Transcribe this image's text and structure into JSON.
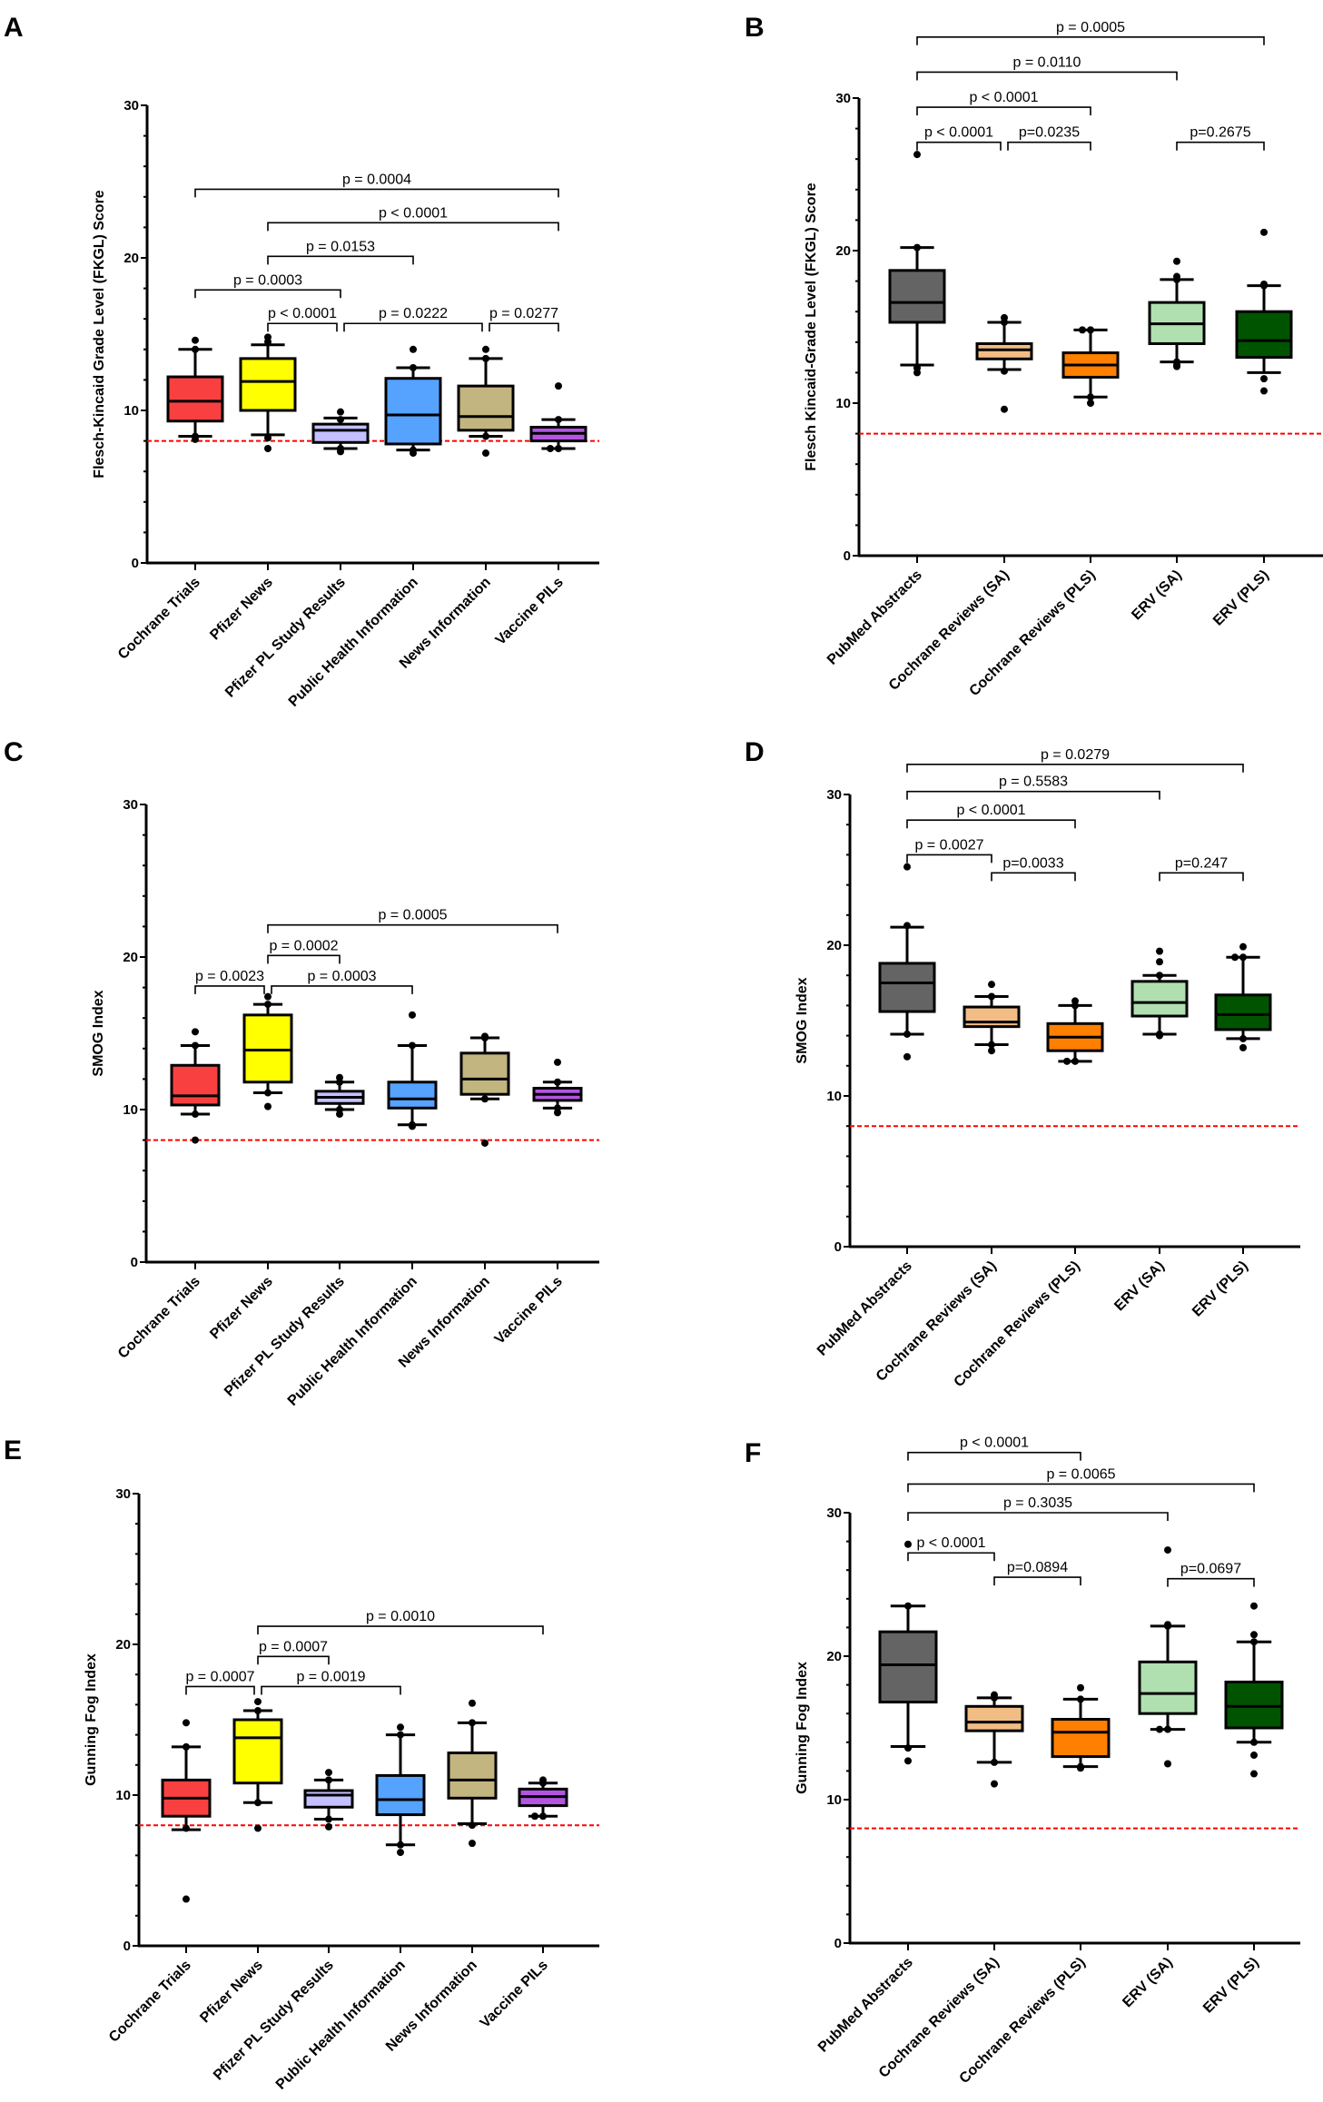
{
  "chart_data": [
    {
      "panel": "A",
      "type": "box",
      "ylabel": "Flesch-Kincaid Grade Level (FKGL) Score",
      "ylim": [
        0,
        30
      ],
      "yticks": [
        0,
        10,
        20,
        30
      ],
      "reference_line": {
        "y": 8,
        "color": "#ff0000",
        "style": "dashed"
      },
      "categories": [
        "Cochrane Trials",
        "Pfizer News",
        "Pfizer PL Study Results",
        "Public Health Information",
        "News Information",
        "Vaccine PILs"
      ],
      "colors": [
        "#f94040",
        "#ffff00",
        "#c4c0ff",
        "#56a2ff",
        "#c2b57f",
        "#b355e0"
      ],
      "boxes": [
        {
          "q1": 9.3,
          "median": 10.6,
          "q3": 12.2,
          "whisker_low": 8.3,
          "whisker_high": 14.0,
          "outliers": [
            14.6,
            8.1,
            8.3,
            14.0
          ]
        },
        {
          "q1": 10.0,
          "median": 11.9,
          "q3": 13.4,
          "whisker_low": 8.4,
          "whisker_high": 14.3,
          "outliers": [
            14.8,
            14.5,
            7.5,
            8.2
          ]
        },
        {
          "q1": 7.9,
          "median": 8.7,
          "q3": 9.1,
          "whisker_low": 7.5,
          "whisker_high": 9.5,
          "outliers": [
            9.9,
            7.3,
            7.5,
            9.4
          ]
        },
        {
          "q1": 7.8,
          "median": 9.7,
          "q3": 12.1,
          "whisker_low": 7.4,
          "whisker_high": 12.8,
          "outliers": [
            14.0,
            7.2,
            7.4,
            12.8
          ]
        },
        {
          "q1": 8.7,
          "median": 9.6,
          "q3": 11.6,
          "whisker_low": 8.3,
          "whisker_high": 13.4,
          "outliers": [
            14.0,
            7.2,
            8.3,
            13.4
          ]
        },
        {
          "q1": 8.0,
          "median": 8.5,
          "q3": 8.9,
          "whisker_low": 7.5,
          "whisker_high": 9.4,
          "outliers": [
            11.6,
            7.5,
            7.5,
            9.4
          ]
        }
      ],
      "comparisons": [
        {
          "from": 0,
          "to": 5,
          "y": 24.5,
          "label": "p = 0.0004"
        },
        {
          "from": 1,
          "to": 5,
          "y": 22.3,
          "label": "p < 0.0001"
        },
        {
          "from": 1,
          "to": 3,
          "y": 20.1,
          "label": "p = 0.0153"
        },
        {
          "from": 0,
          "to": 2,
          "y": 17.9,
          "label": "p = 0.0003"
        },
        {
          "from": 1,
          "to": 2,
          "y": 15.7,
          "label": "p < 0.0001"
        },
        {
          "from": 2,
          "to": 4,
          "y": 15.7,
          "label": "p = 0.0222"
        },
        {
          "from": 4,
          "to": 5,
          "y": 15.7,
          "label": "p = 0.0277"
        }
      ]
    },
    {
      "panel": "B",
      "type": "box",
      "ylabel": "Flesch Kincaid-Grade Level (FKGL) Score",
      "ylim": [
        0,
        30
      ],
      "yticks": [
        0,
        10,
        20,
        30
      ],
      "reference_line": {
        "y": 8,
        "color": "#ff0000",
        "style": "dashed"
      },
      "categories": [
        "PubMed Abstracts",
        "Cochrane Reviews (SA)",
        "Cochrane Reviews (PLS)",
        "ERV (SA)",
        "ERV (PLS)"
      ],
      "colors": [
        "#646464",
        "#f2bd85",
        "#ff8000",
        "#b0e0b0",
        "#005400"
      ],
      "boxes": [
        {
          "q1": 15.3,
          "median": 16.6,
          "q3": 18.7,
          "whisker_low": 12.5,
          "whisker_high": 20.2,
          "outliers": [
            26.3,
            12.0,
            12.3,
            20.2
          ]
        },
        {
          "q1": 12.9,
          "median": 13.5,
          "q3": 13.9,
          "whisker_low": 12.2,
          "whisker_high": 15.3,
          "outliers": [
            15.6,
            15.3,
            12.1,
            9.6
          ]
        },
        {
          "q1": 11.7,
          "median": 12.5,
          "q3": 13.3,
          "whisker_low": 10.4,
          "whisker_high": 14.8,
          "outliers": [
            14.8,
            14.8,
            10.0,
            10.4
          ]
        },
        {
          "q1": 13.9,
          "median": 15.2,
          "q3": 16.6,
          "whisker_low": 12.7,
          "whisker_high": 18.1,
          "outliers": [
            19.3,
            18.3,
            18.1,
            12.4,
            12.7,
            12.5
          ]
        },
        {
          "q1": 13.0,
          "median": 14.1,
          "q3": 16.0,
          "whisker_low": 12.0,
          "whisker_high": 17.7,
          "outliers": [
            21.2,
            17.8,
            17.7,
            11.6,
            10.8
          ]
        }
      ],
      "comparisons": [
        {
          "from": 0,
          "to": 4,
          "y": 34.0,
          "label": "p = 0.0005"
        },
        {
          "from": 0,
          "to": 3,
          "y": 31.7,
          "label": "p = 0.0110"
        },
        {
          "from": 0,
          "to": 2,
          "y": 29.4,
          "label": "p < 0.0001"
        },
        {
          "from": 0,
          "to": 1,
          "y": 27.1,
          "label": "p < 0.0001"
        },
        {
          "from": 1,
          "to": 2,
          "y": 27.1,
          "label": "p=0.0235"
        },
        {
          "from": 3,
          "to": 4,
          "y": 27.1,
          "label": "p=0.2675"
        }
      ]
    },
    {
      "panel": "C",
      "type": "box",
      "ylabel": "SMOG Index",
      "ylim": [
        0,
        30
      ],
      "yticks": [
        0,
        10,
        20,
        30
      ],
      "reference_line": {
        "y": 8,
        "color": "#ff0000",
        "style": "dashed"
      },
      "categories": [
        "Cochrane Trials",
        "Pfizer News",
        "Pfizer PL Study Results",
        "Public Health Information",
        "News Information",
        "Vaccine PILs"
      ],
      "colors": [
        "#f94040",
        "#ffff00",
        "#c4c0ff",
        "#56a2ff",
        "#c2b57f",
        "#b355e0"
      ],
      "boxes": [
        {
          "q1": 10.3,
          "median": 10.9,
          "q3": 12.9,
          "whisker_low": 9.7,
          "whisker_high": 14.2,
          "outliers": [
            15.1,
            14.2,
            9.7,
            8.0
          ]
        },
        {
          "q1": 11.8,
          "median": 13.9,
          "q3": 16.2,
          "whisker_low": 11.1,
          "whisker_high": 16.9,
          "outliers": [
            17.4,
            16.9,
            11.1,
            10.2
          ]
        },
        {
          "q1": 10.4,
          "median": 10.8,
          "q3": 11.2,
          "whisker_low": 10.0,
          "whisker_high": 11.8,
          "outliers": [
            12.1,
            11.8,
            10.0,
            9.7
          ]
        },
        {
          "q1": 10.1,
          "median": 10.7,
          "q3": 11.8,
          "whisker_low": 9.0,
          "whisker_high": 14.2,
          "outliers": [
            16.2,
            14.2,
            9.0,
            8.9
          ]
        },
        {
          "q1": 11.0,
          "median": 12.0,
          "q3": 13.7,
          "whisker_low": 10.7,
          "whisker_high": 14.7,
          "outliers": [
            14.8,
            14.7,
            10.7,
            7.8
          ]
        },
        {
          "q1": 10.6,
          "median": 11.0,
          "q3": 11.4,
          "whisker_low": 10.1,
          "whisker_high": 11.8,
          "outliers": [
            13.1,
            11.8,
            10.1,
            9.8
          ]
        }
      ],
      "comparisons": [
        {
          "from": 1,
          "to": 5,
          "y": 22.1,
          "label": "p = 0.0005"
        },
        {
          "from": 1,
          "to": 2,
          "y": 20.1,
          "label": "p = 0.0002"
        },
        {
          "from": 0,
          "to": 1,
          "y": 18.1,
          "label": "p = 0.0023"
        },
        {
          "from": 1,
          "to": 3,
          "y": 18.1,
          "label": "p = 0.0003"
        }
      ]
    },
    {
      "panel": "D",
      "type": "box",
      "ylabel": "SMOG Index",
      "ylim": [
        0,
        30
      ],
      "yticks": [
        0,
        10,
        20,
        30
      ],
      "reference_line": {
        "y": 8,
        "color": "#ff0000",
        "style": "dashed"
      },
      "categories": [
        "PubMed Abstracts",
        "Cochrane Reviews (SA)",
        "Cochrane Reviews (PLS)",
        "ERV (SA)",
        "ERV (PLS)"
      ],
      "colors": [
        "#646464",
        "#f2bd85",
        "#ff8000",
        "#b0e0b0",
        "#005400"
      ],
      "boxes": [
        {
          "q1": 15.6,
          "median": 17.5,
          "q3": 18.8,
          "whisker_low": 14.1,
          "whisker_high": 21.2,
          "outliers": [
            25.2,
            21.3,
            14.1,
            12.6
          ]
        },
        {
          "q1": 14.6,
          "median": 14.9,
          "q3": 15.9,
          "whisker_low": 13.4,
          "whisker_high": 16.6,
          "outliers": [
            17.4,
            16.6,
            13.4,
            13.0
          ]
        },
        {
          "q1": 13.0,
          "median": 13.9,
          "q3": 14.8,
          "whisker_low": 12.3,
          "whisker_high": 16.0,
          "outliers": [
            16.3,
            16.0,
            12.3,
            12.3
          ]
        },
        {
          "q1": 15.3,
          "median": 16.2,
          "q3": 17.6,
          "whisker_low": 14.1,
          "whisker_high": 18.0,
          "outliers": [
            19.6,
            18.9,
            18.0,
            14.1,
            14.0
          ]
        },
        {
          "q1": 14.4,
          "median": 15.4,
          "q3": 16.7,
          "whisker_low": 13.8,
          "whisker_high": 19.2,
          "outliers": [
            19.9,
            19.2,
            19.2,
            13.8,
            13.2
          ]
        }
      ],
      "comparisons": [
        {
          "from": 0,
          "to": 4,
          "y": 32.0,
          "label": "p = 0.0279"
        },
        {
          "from": 0,
          "to": 3,
          "y": 30.2,
          "label": "p = 0.5583"
        },
        {
          "from": 0,
          "to": 2,
          "y": 28.3,
          "label": "p < 0.0001"
        },
        {
          "from": 0,
          "to": 1,
          "y": 26.0,
          "label": "p = 0.0027"
        },
        {
          "from": 1,
          "to": 2,
          "y": 24.8,
          "label": "p=0.0033"
        },
        {
          "from": 3,
          "to": 4,
          "y": 24.8,
          "label": "p=0.247"
        }
      ]
    },
    {
      "panel": "E",
      "type": "box",
      "ylabel": "Gunning Fog Index",
      "ylim": [
        0,
        30
      ],
      "yticks": [
        0,
        10,
        20,
        30
      ],
      "reference_line": {
        "y": 8,
        "color": "#ff0000",
        "style": "dashed"
      },
      "categories": [
        "Cochrane Trials",
        "Pfizer News",
        "Pfizer PL Study Results",
        "Public Health Information",
        "News Information",
        "Vaccine PILs"
      ],
      "colors": [
        "#f94040",
        "#ffff00",
        "#c4c0ff",
        "#56a2ff",
        "#c2b57f",
        "#b355e0"
      ],
      "boxes": [
        {
          "q1": 8.6,
          "median": 9.8,
          "q3": 11.0,
          "whisker_low": 7.7,
          "whisker_high": 13.2,
          "outliers": [
            14.8,
            13.2,
            7.8,
            3.1
          ]
        },
        {
          "q1": 10.8,
          "median": 13.8,
          "q3": 15.0,
          "whisker_low": 9.5,
          "whisker_high": 15.6,
          "outliers": [
            16.2,
            15.6,
            9.5,
            7.8
          ]
        },
        {
          "q1": 9.2,
          "median": 10.0,
          "q3": 10.3,
          "whisker_low": 8.4,
          "whisker_high": 11.0,
          "outliers": [
            11.5,
            11.0,
            8.4,
            7.9
          ]
        },
        {
          "q1": 8.7,
          "median": 9.7,
          "q3": 11.3,
          "whisker_low": 6.7,
          "whisker_high": 14.0,
          "outliers": [
            14.5,
            14.0,
            6.7,
            6.2
          ]
        },
        {
          "q1": 9.8,
          "median": 11.0,
          "q3": 12.8,
          "whisker_low": 8.1,
          "whisker_high": 14.8,
          "outliers": [
            16.1,
            14.8,
            8.0,
            6.8
          ]
        },
        {
          "q1": 9.3,
          "median": 9.9,
          "q3": 10.4,
          "whisker_low": 8.6,
          "whisker_high": 10.8,
          "outliers": [
            11.0,
            10.8,
            8.6,
            8.6
          ]
        }
      ],
      "comparisons": [
        {
          "from": 1,
          "to": 5,
          "y": 21.2,
          "label": "p = 0.0010"
        },
        {
          "from": 1,
          "to": 2,
          "y": 19.2,
          "label": "p = 0.0007"
        },
        {
          "from": 0,
          "to": 1,
          "y": 17.2,
          "label": "p = 0.0007"
        },
        {
          "from": 1,
          "to": 3,
          "y": 17.2,
          "label": "p = 0.0019"
        }
      ]
    },
    {
      "panel": "F",
      "type": "box",
      "ylabel": "Gunning Fog Index",
      "ylim": [
        0,
        30
      ],
      "yticks": [
        0,
        10,
        20,
        30
      ],
      "reference_line": {
        "y": 8,
        "color": "#ff0000",
        "style": "dashed"
      },
      "categories": [
        "PubMed Abstracts",
        "Cochrane Reviews (SA)",
        "Cochrane Reviews (PLS)",
        "ERV (SA)",
        "ERV (PLS)"
      ],
      "colors": [
        "#646464",
        "#f2bd85",
        "#ff8000",
        "#b0e0b0",
        "#005400"
      ],
      "boxes": [
        {
          "q1": 16.8,
          "median": 19.4,
          "q3": 21.7,
          "whisker_low": 13.7,
          "whisker_high": 23.5,
          "outliers": [
            27.8,
            23.5,
            13.6,
            12.7
          ]
        },
        {
          "q1": 14.8,
          "median": 15.4,
          "q3": 16.5,
          "whisker_low": 12.6,
          "whisker_high": 17.1,
          "outliers": [
            17.3,
            17.1,
            12.6,
            11.1
          ]
        },
        {
          "q1": 13.0,
          "median": 14.7,
          "q3": 15.6,
          "whisker_low": 12.3,
          "whisker_high": 17.0,
          "outliers": [
            17.8,
            17.0,
            12.2,
            12.3
          ]
        },
        {
          "q1": 16.0,
          "median": 17.4,
          "q3": 19.6,
          "whisker_low": 14.9,
          "whisker_high": 22.1,
          "outliers": [
            27.4,
            22.2,
            22.1,
            14.9,
            14.9,
            12.5
          ]
        },
        {
          "q1": 15.0,
          "median": 16.5,
          "q3": 18.2,
          "whisker_low": 14.0,
          "whisker_high": 21.0,
          "outliers": [
            23.5,
            21.5,
            21.0,
            14.0,
            13.1,
            11.8
          ]
        }
      ],
      "comparisons": [
        {
          "from": 0,
          "to": 2,
          "y": 34.2,
          "label": "p < 0.0001"
        },
        {
          "from": 0,
          "to": 4,
          "y": 32.0,
          "label": "p = 0.0065"
        },
        {
          "from": 0,
          "to": 3,
          "y": 30.0,
          "label": "p = 0.3035"
        },
        {
          "from": 0,
          "to": 1,
          "y": 27.2,
          "label": "p < 0.0001"
        },
        {
          "from": 1,
          "to": 2,
          "y": 25.5,
          "label": "p=0.0894"
        },
        {
          "from": 3,
          "to": 4,
          "y": 25.4,
          "label": "p=0.0697"
        }
      ]
    }
  ]
}
